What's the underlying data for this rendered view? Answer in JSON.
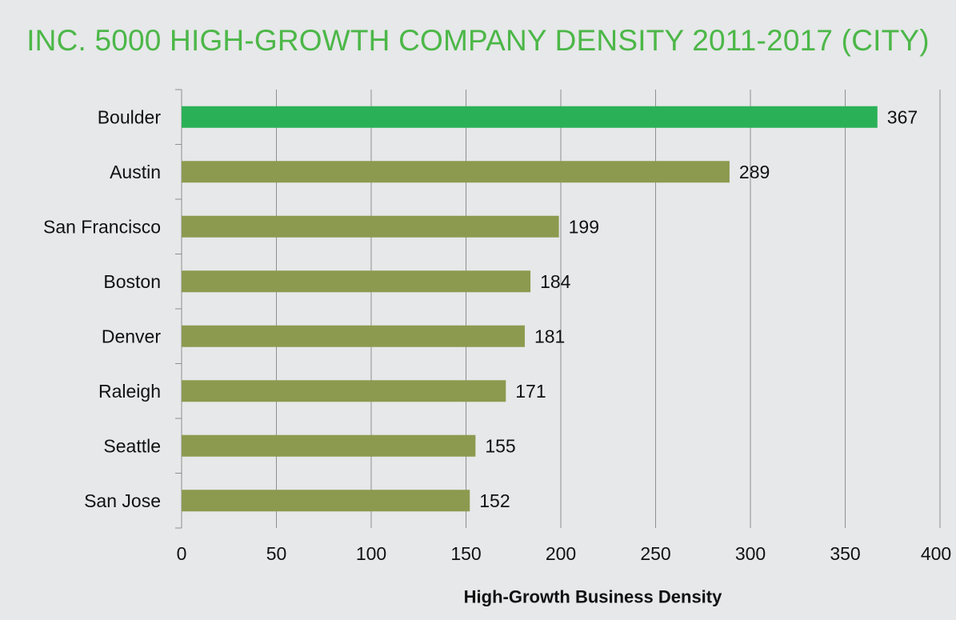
{
  "chart_data": {
    "type": "bar",
    "orientation": "horizontal",
    "title": "INC. 5000 HIGH-GROWTH COMPANY DENSITY 2011-2017 (CITY)",
    "xlabel": "High-Growth Business Density",
    "ylabel": "",
    "categories": [
      "Boulder",
      "Austin",
      "San Francisco",
      "Boston",
      "Denver",
      "Raleigh",
      "Seattle",
      "San Jose"
    ],
    "values": [
      367,
      289,
      199,
      184,
      181,
      171,
      155,
      152
    ],
    "data_labels": [
      "367",
      "289",
      "199",
      "184",
      "181",
      "171",
      "155",
      "152"
    ],
    "xlim": [
      0,
      400
    ],
    "xticks": [
      0,
      50,
      100,
      150,
      200,
      250,
      300,
      350,
      400
    ],
    "xtick_labels": [
      "0",
      "50",
      "100",
      "150",
      "200",
      "250",
      "300",
      "350",
      "400"
    ],
    "grid": "vertical",
    "legend": "none",
    "colors": {
      "highlight": "#2ab157",
      "default": "#8c9a4f",
      "title": "#4cb748",
      "gridline": "#8f8f8f",
      "background": "#e6e8e9"
    },
    "highlight_category": "Boulder"
  }
}
